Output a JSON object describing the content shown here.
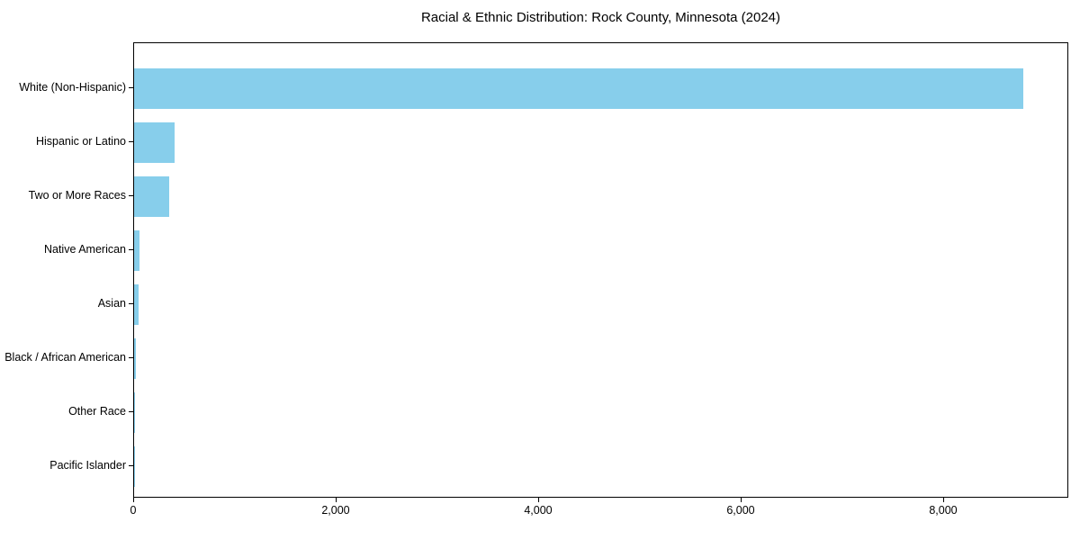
{
  "chart_data": {
    "type": "bar",
    "orientation": "horizontal",
    "title": "Racial & Ethnic Distribution: Rock County, Minnesota (2024)",
    "categories": [
      "White (Non-Hispanic)",
      "Hispanic or Latino",
      "Two or More Races",
      "Native American",
      "Asian",
      "Black / African American",
      "Other Race",
      "Pacific Islander"
    ],
    "values": [
      8780,
      400,
      345,
      55,
      45,
      15,
      5,
      2
    ],
    "xlabel": "",
    "ylabel": "",
    "xlim": [
      0,
      9236
    ],
    "x_ticks": [
      0,
      2000,
      4000,
      6000,
      8000
    ],
    "x_tick_labels": [
      "0",
      "2,000",
      "4,000",
      "6,000",
      "8,000"
    ],
    "bar_color": "#87CEEB",
    "background_color": "#ffffff",
    "text_color": "#000000",
    "grid": false,
    "legend": null
  }
}
